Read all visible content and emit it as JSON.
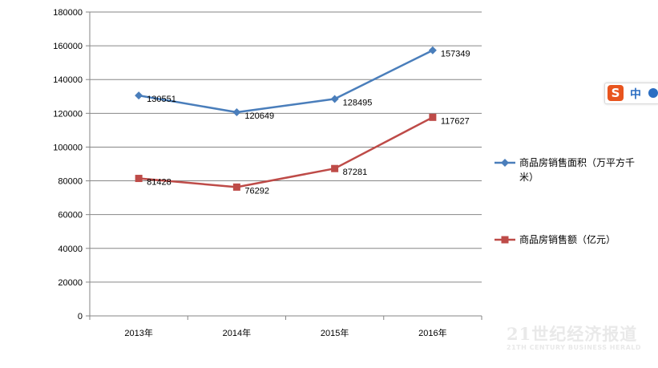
{
  "chart_data": {
    "type": "line",
    "categories": [
      "2013年",
      "2014年",
      "2015年",
      "2016年"
    ],
    "ylim": [
      0,
      180000
    ],
    "yticks": [
      0,
      20000,
      40000,
      60000,
      80000,
      100000,
      120000,
      140000,
      160000,
      180000
    ],
    "grid": true,
    "legend_position": "right",
    "series": [
      {
        "name": "商品房销售面积（万平方千",
        "name_cont": "米）",
        "values": [
          130551,
          120649,
          128495,
          157349
        ],
        "color": "#4a7ebb",
        "marker": "diamond"
      },
      {
        "name": "商品房销售额（亿元）",
        "values": [
          81428,
          76292,
          87281,
          117627
        ],
        "color": "#be4b48",
        "marker": "square"
      }
    ]
  },
  "ime": {
    "logo": "S",
    "label": "中"
  },
  "watermark": {
    "main": "21世纪经济报道",
    "sub": "21TH CENTURY BUSINESS HERALD"
  }
}
